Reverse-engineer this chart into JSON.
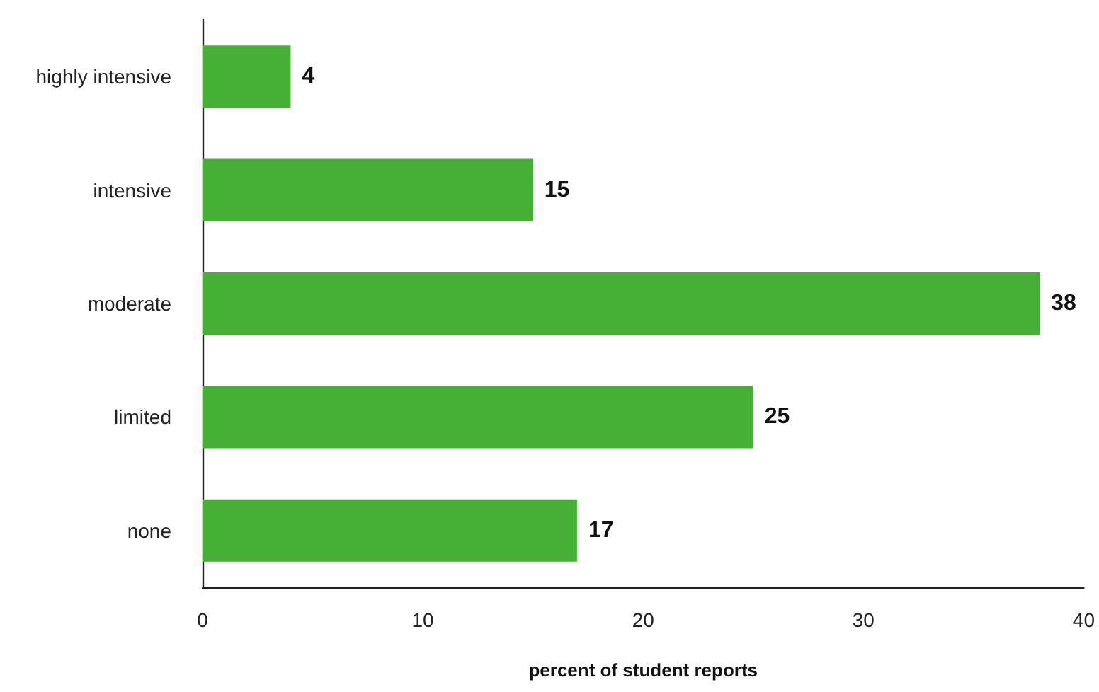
{
  "chart_data": {
    "type": "bar",
    "orientation": "horizontal",
    "categories": [
      "highly intensive",
      "intensive",
      "moderate",
      "limited",
      "none"
    ],
    "values": [
      4,
      15,
      38,
      25,
      17
    ],
    "color": "#45b035",
    "xlim": [
      0,
      40
    ],
    "xticks": [
      0,
      10,
      20,
      30,
      40
    ],
    "xlabel": "percent of student reports",
    "data_labels": true,
    "grid": false
  }
}
